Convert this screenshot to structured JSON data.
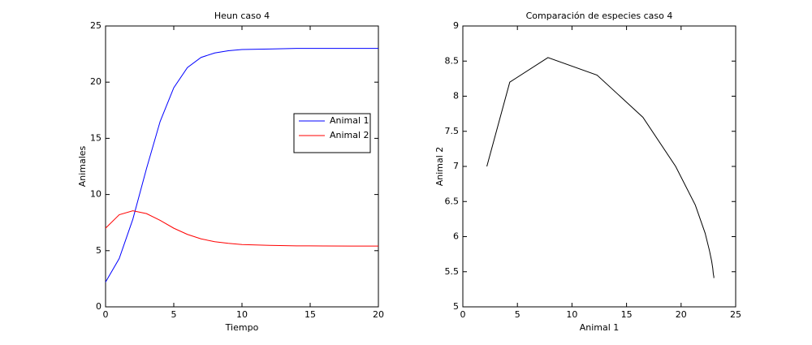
{
  "chart_data": [
    {
      "type": "line",
      "title": "Heun caso 4",
      "x_label": "Tiempo",
      "y_label": "Animales",
      "x": [
        0,
        1,
        2,
        3,
        4,
        5,
        6,
        7,
        8,
        9,
        10,
        12,
        14,
        16,
        18,
        20
      ],
      "series": [
        {
          "name": "Animal 1",
          "color": "#0000ff",
          "values": [
            2.2,
            4.3,
            7.8,
            12.3,
            16.5,
            19.5,
            21.3,
            22.2,
            22.6,
            22.8,
            22.9,
            22.95,
            23,
            23,
            23,
            23
          ]
        },
        {
          "name": "Animal 2",
          "color": "#ff0000",
          "values": [
            7.0,
            8.2,
            8.55,
            8.3,
            7.7,
            7.0,
            6.45,
            6.05,
            5.8,
            5.65,
            5.55,
            5.47,
            5.43,
            5.42,
            5.41,
            5.41
          ]
        }
      ],
      "xlim": [
        0,
        20
      ],
      "ylim": [
        0,
        25
      ],
      "xticks": [
        0,
        5,
        10,
        15,
        20
      ],
      "yticks": [
        0,
        5,
        10,
        15,
        20,
        25
      ],
      "grid": false,
      "legend": "right"
    },
    {
      "type": "line",
      "title": "Comparación de especies caso 4",
      "x_label": "Animal 1",
      "y_label": "Animal 2",
      "x": [
        2.2,
        4.3,
        7.8,
        12.3,
        16.5,
        19.5,
        21.3,
        22.2,
        22.6,
        22.8,
        22.9,
        22.95,
        23,
        23,
        23,
        23
      ],
      "values": [
        7.0,
        8.2,
        8.55,
        8.3,
        7.7,
        7.0,
        6.45,
        6.05,
        5.8,
        5.65,
        5.55,
        5.47,
        5.43,
        5.42,
        5.41,
        5.41
      ],
      "color": "#000000",
      "xlim": [
        0,
        25
      ],
      "ylim": [
        5,
        9
      ],
      "xticks": [
        0,
        5,
        10,
        15,
        20,
        25
      ],
      "yticks": [
        5,
        5.5,
        6,
        6.5,
        7,
        7.5,
        8,
        8.5,
        9
      ],
      "grid": false
    }
  ]
}
